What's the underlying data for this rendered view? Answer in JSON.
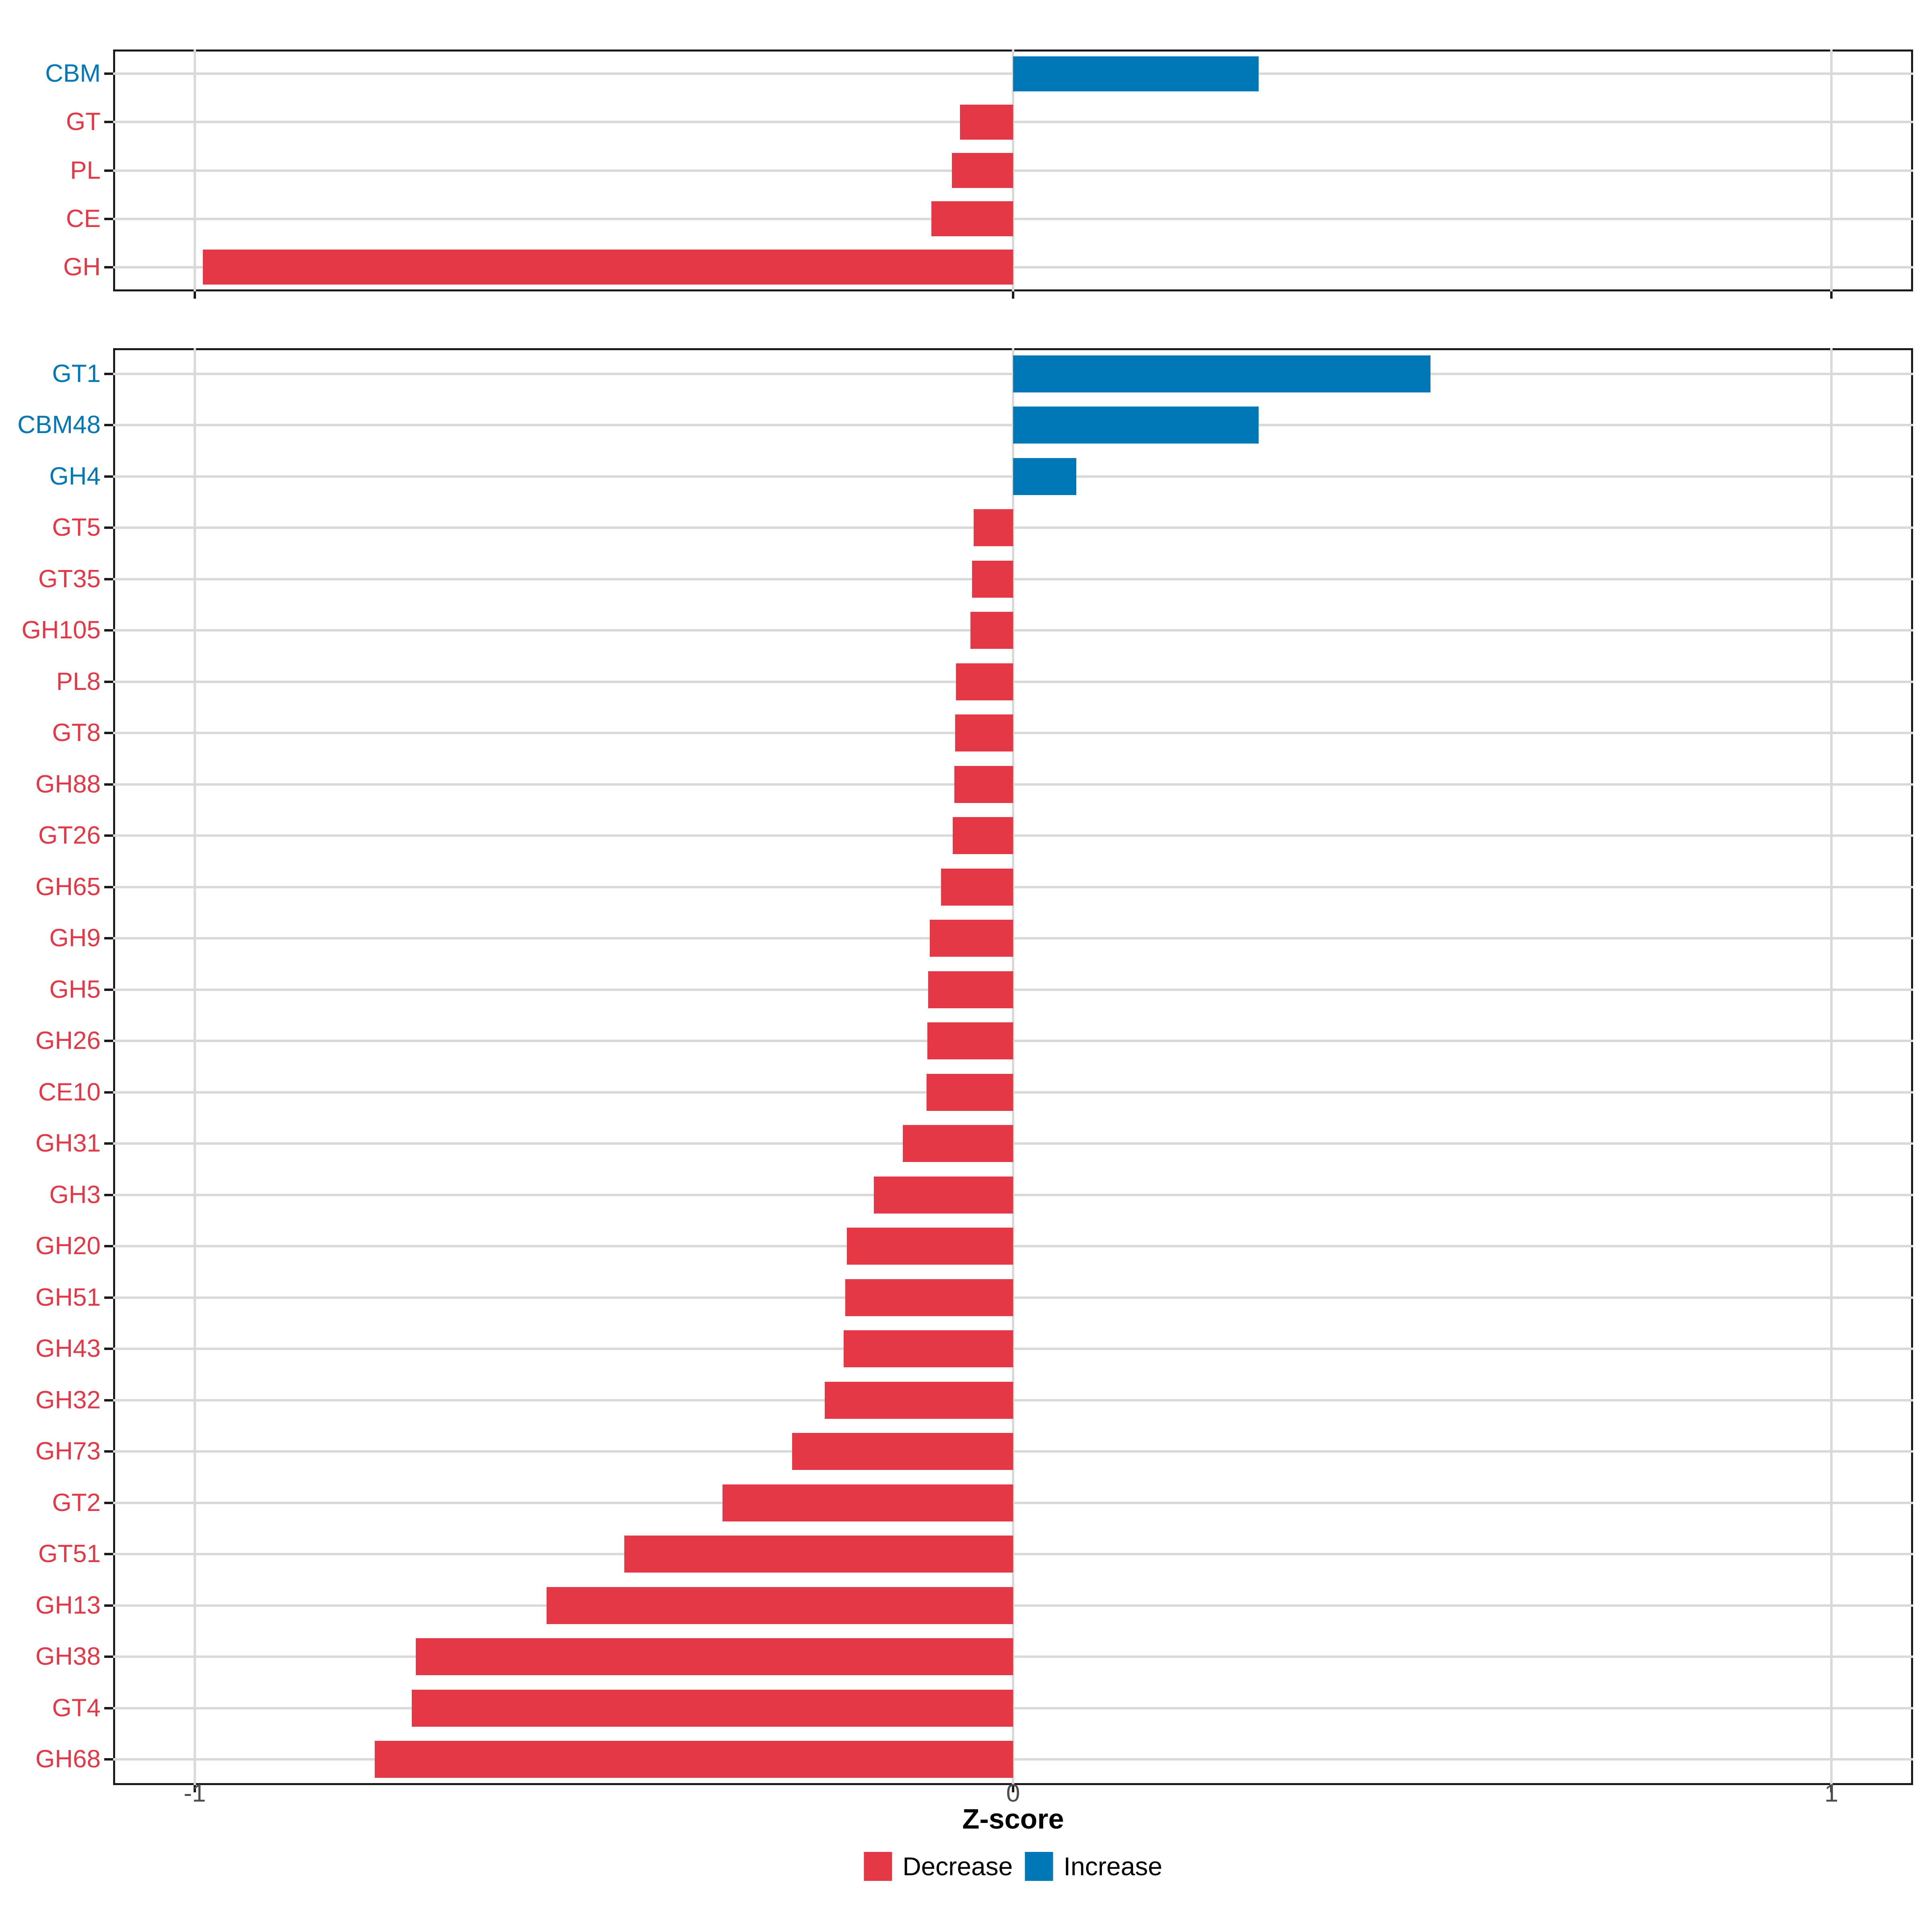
{
  "axis": {
    "xlabel": "Z-score",
    "tick_values": [
      -1,
      0,
      1
    ],
    "tick_labels": [
      "-1",
      "0",
      "1"
    ],
    "xlim": [
      -1.1,
      1.1
    ],
    "grid": true
  },
  "colors": {
    "decrease": "#E53847",
    "increase": "#0077B6",
    "gridline": "#D9D9D9",
    "panel_border": "#1A1A1A",
    "tick_mark": "#1A1A1A",
    "tick_text": "#4D4D4D",
    "background": "#FFFFFF"
  },
  "legend": {
    "position": "bottom-center",
    "items": [
      {
        "label": "Decrease",
        "color": "#E53847"
      },
      {
        "label": "Increase",
        "color": "#0077B6"
      }
    ]
  },
  "chart_data": [
    {
      "type": "bar",
      "orientation": "horizontal",
      "panel": "top",
      "title": "",
      "categories": [
        "CBM",
        "GT",
        "PL",
        "CE",
        "GH"
      ],
      "values": [
        0.3,
        -0.065,
        -0.075,
        -0.1,
        -0.99
      ],
      "series_name": "Z-score",
      "color_rule": "negative=Decrease(red), positive=Increase(blue)",
      "xlim": [
        -1.1,
        1.1
      ]
    },
    {
      "type": "bar",
      "orientation": "horizontal",
      "panel": "bottom",
      "title": "",
      "categories": [
        "GT1",
        "CBM48",
        "GH4",
        "GT5",
        "GT35",
        "GH105",
        "PL8",
        "GT8",
        "GH88",
        "GT26",
        "GH65",
        "GH9",
        "GH5",
        "GH26",
        "CE10",
        "GH31",
        "GH3",
        "GH20",
        "GH51",
        "GH43",
        "GH32",
        "GH73",
        "GT2",
        "GT51",
        "GH13",
        "GH38",
        "GT4",
        "GH68"
      ],
      "values": [
        0.51,
        0.3,
        0.077,
        -0.048,
        -0.05,
        -0.052,
        -0.07,
        -0.071,
        -0.072,
        -0.074,
        -0.088,
        -0.102,
        -0.104,
        -0.105,
        -0.106,
        -0.135,
        -0.17,
        -0.203,
        -0.205,
        -0.207,
        -0.23,
        -0.27,
        -0.355,
        -0.475,
        -0.57,
        -0.73,
        -0.735,
        -0.78
      ],
      "series_name": "Z-score",
      "color_rule": "negative=Decrease(red), positive=Increase(blue)",
      "xlim": [
        -1.1,
        1.1
      ]
    }
  ]
}
